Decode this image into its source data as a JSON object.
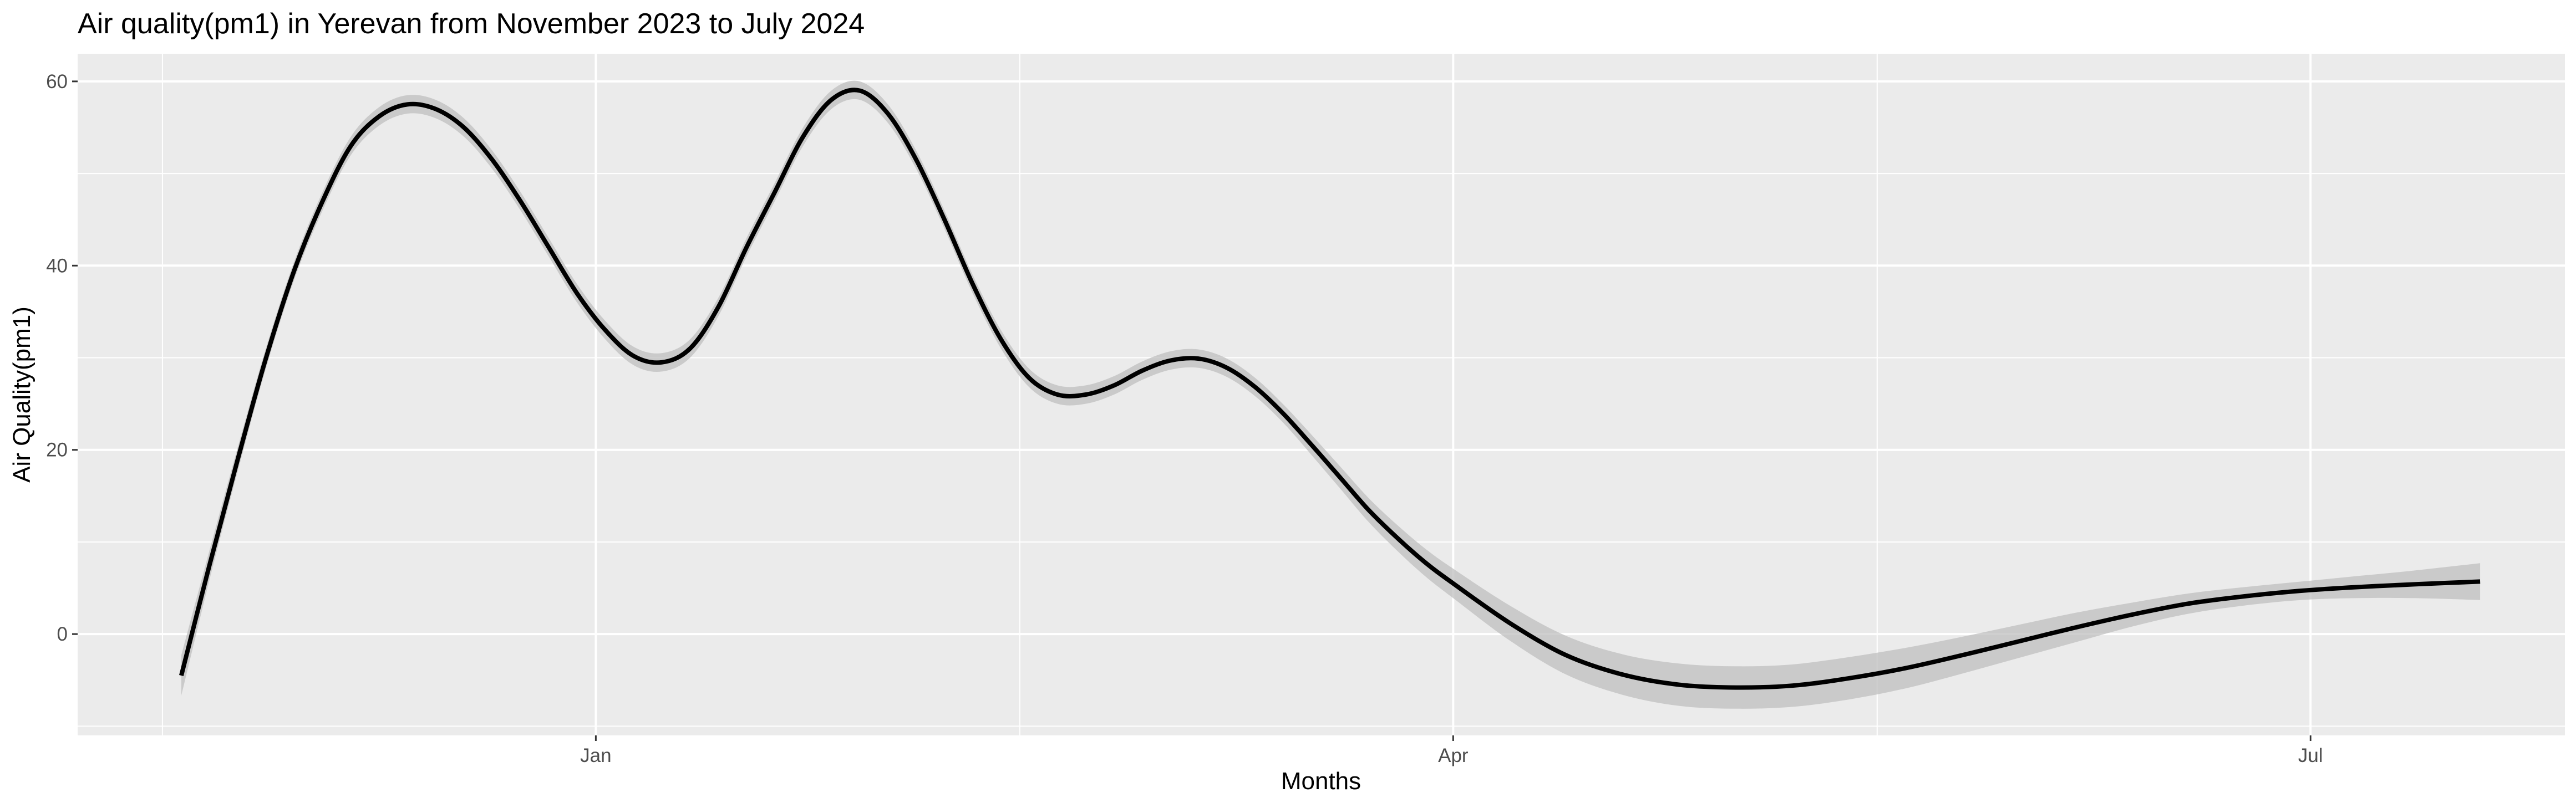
{
  "chart_data": {
    "type": "line",
    "title": "Air quality(pm1) in Yerevan from November 2023 to July 2024",
    "xlabel": "Months",
    "ylabel": "Air Quality(pm1)",
    "x_type": "date",
    "x_range": [
      "2023-11-07",
      "2024-07-28"
    ],
    "y_range": [
      -11,
      63
    ],
    "x_ticks": [
      {
        "date": "2024-01-01",
        "label": "Jan"
      },
      {
        "date": "2024-04-01",
        "label": "Apr"
      },
      {
        "date": "2024-07-01",
        "label": "Jul"
      }
    ],
    "x_minor_ticks": [
      "2023-11-16",
      "2024-02-15",
      "2024-05-16"
    ],
    "y_ticks": [
      0,
      20,
      40,
      60
    ],
    "y_minor_ticks": [
      -10,
      10,
      30,
      50
    ],
    "grid": true,
    "legend": "none",
    "colors": {
      "panel": "#ebebeb",
      "grid": "#ffffff",
      "line": "#000000",
      "ribbon": "#bfbfbf"
    },
    "series": [
      {
        "x": [
          "2023-11-18",
          "2023-11-21",
          "2023-11-24",
          "2023-11-27",
          "2023-11-30",
          "2023-12-03",
          "2023-12-06",
          "2023-12-09",
          "2023-12-12",
          "2023-12-15",
          "2023-12-18",
          "2023-12-21",
          "2023-12-24",
          "2023-12-27",
          "2023-12-30",
          "2024-01-02",
          "2024-01-05",
          "2024-01-08",
          "2024-01-11",
          "2024-01-14",
          "2024-01-17",
          "2024-01-20",
          "2024-01-23",
          "2024-01-26",
          "2024-01-29",
          "2024-02-01",
          "2024-02-04",
          "2024-02-07",
          "2024-02-10",
          "2024-02-13",
          "2024-02-16",
          "2024-02-19",
          "2024-02-22",
          "2024-02-25",
          "2024-02-28",
          "2024-03-02",
          "2024-03-05",
          "2024-03-08",
          "2024-03-11",
          "2024-03-14",
          "2024-03-17",
          "2024-03-20",
          "2024-03-23",
          "2024-03-26",
          "2024-03-29",
          "2024-04-01",
          "2024-04-07",
          "2024-04-13",
          "2024-04-19",
          "2024-04-25",
          "2024-05-01",
          "2024-05-07",
          "2024-05-13",
          "2024-05-19",
          "2024-05-25",
          "2024-05-31",
          "2024-06-06",
          "2024-06-12",
          "2024-06-18",
          "2024-06-24",
          "2024-06-30",
          "2024-07-06",
          "2024-07-12",
          "2024-07-19"
        ],
        "y": [
          -4.5,
          7.5,
          19,
          30,
          39.5,
          47,
          53,
          56.2,
          57.5,
          57,
          55,
          51.5,
          47,
          42,
          37,
          33,
          30.2,
          29.5,
          31,
          35.5,
          42,
          48,
          54,
          58,
          59,
          56.5,
          51.5,
          45,
          38,
          32,
          27.8,
          26,
          26,
          27,
          28.6,
          29.7,
          29.9,
          28.9,
          26.8,
          23.9,
          20.5,
          17,
          13.5,
          10.5,
          7.8,
          5.5,
          1.2,
          -2.3,
          -4.4,
          -5.5,
          -5.8,
          -5.6,
          -4.8,
          -3.7,
          -2.3,
          -0.8,
          0.7,
          2.1,
          3.3,
          4.1,
          4.7,
          5.1,
          5.4,
          5.7
        ],
        "ribbon_half_width": [
          2.2,
          1.6,
          1.3,
          1.1,
          1.0,
          1.0,
          1.0,
          1.0,
          1.0,
          1.0,
          1.0,
          1.0,
          1.0,
          1.0,
          1.0,
          1.0,
          1.0,
          1.0,
          1.0,
          1.0,
          1.0,
          1.0,
          1.0,
          1.0,
          1.0,
          1.0,
          1.0,
          1.0,
          1.0,
          1.0,
          1.0,
          1.0,
          1.0,
          1.0,
          1.0,
          1.0,
          1.0,
          1.0,
          1.0,
          1.0,
          1.1,
          1.2,
          1.3,
          1.4,
          1.5,
          1.6,
          1.9,
          2.1,
          2.2,
          2.3,
          2.3,
          2.3,
          2.3,
          2.2,
          2.0,
          1.8,
          1.6,
          1.3,
          1.1,
          1.0,
          1.0,
          1.2,
          1.5,
          2.0
        ]
      }
    ]
  }
}
